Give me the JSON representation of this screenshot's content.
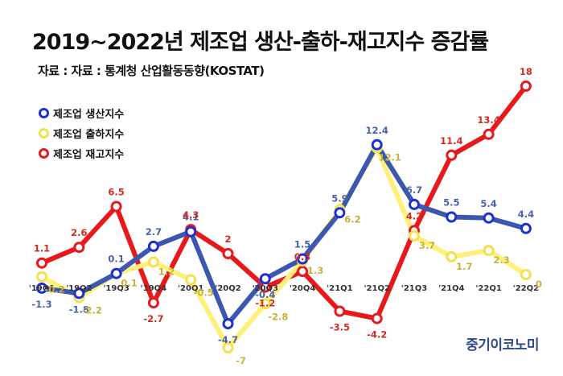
{
  "title": "2019~2022년 제조업 생산-출하-재고지수 증감률",
  "source": "자료 : 자료 : 통계청 산업활동동향(KOSTAT)",
  "brand": "중기이코노미",
  "colors": {
    "production": "#3b57b0",
    "shipment": "#fff07a",
    "inventory": "#e8191c",
    "production_marker": "#1f2fd6",
    "shipment_marker": "#f3e24e",
    "inventory_marker": "#e8191c",
    "production_label": "#4a63a8",
    "shipment_label": "#c9b23a",
    "inventory_label": "#d42a20"
  },
  "chart_data": {
    "type": "line",
    "title": "2019~2022년 제조업 생산-출하-재고지수 증감률",
    "categories": [
      "'19Q1",
      "'19Q2",
      "'19Q3",
      "'19Q4",
      "'20Q1",
      "'20Q2",
      "'20Q3",
      "'20Q4",
      "'21Q1",
      "'21Q2",
      "'21Q3",
      "'21Q4",
      "'22Q1",
      "'22Q2"
    ],
    "ylim": [
      -8,
      19
    ],
    "grid": false,
    "legend_position": "left",
    "series": [
      {
        "name": "제조업 생산지수",
        "key": "production",
        "values": [
          -1.3,
          -1.8,
          0.1,
          2.7,
          4.1,
          -4.7,
          -0.4,
          1.5,
          5.9,
          12.4,
          6.7,
          5.5,
          5.4,
          4.4
        ]
      },
      {
        "name": "제조업 출하지수",
        "key": "shipment",
        "values": [
          -0.2,
          -2.2,
          0.1,
          1.2,
          -0.5,
          -7,
          -2.8,
          1.3,
          6.2,
          12.1,
          3.7,
          1.7,
          2.3,
          0
        ]
      },
      {
        "name": "제조업 재고지수",
        "key": "inventory",
        "values": [
          1.1,
          2.6,
          6.5,
          -2.7,
          4.3,
          2,
          -1.2,
          0.3,
          -3.5,
          -4.2,
          4.2,
          11.4,
          13.4,
          18
        ]
      }
    ]
  }
}
